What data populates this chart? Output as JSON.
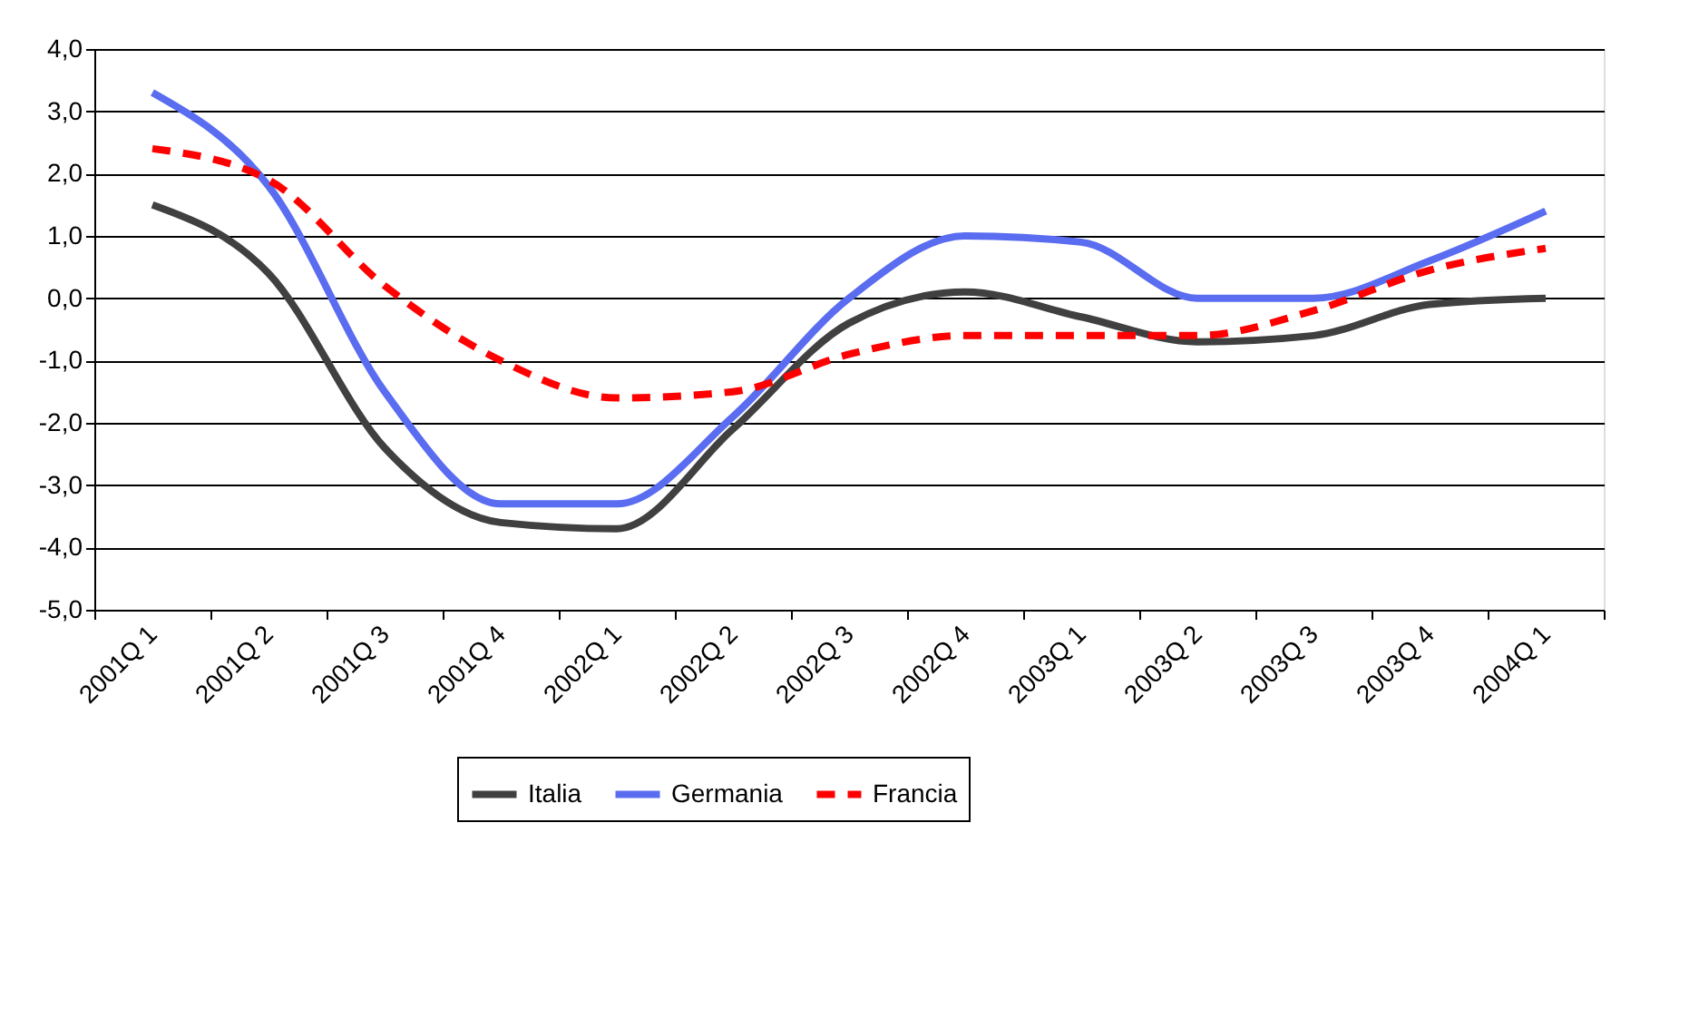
{
  "chart_data": {
    "type": "line",
    "categories": [
      "2001Q 1",
      "2001Q 2",
      "2001Q 3",
      "2001Q 4",
      "2002Q 1",
      "2002Q 2",
      "2002Q 3",
      "2002Q 4",
      "2003Q 1",
      "2003Q 2",
      "2003Q 3",
      "2003Q 4",
      "2004Q 1"
    ],
    "series": [
      {
        "name": "Italia",
        "color": "#404040",
        "line_style": "solid",
        "values": [
          1.5,
          0.4,
          -2.4,
          -3.6,
          -3.7,
          -2.1,
          -0.4,
          0.1,
          -0.3,
          -0.7,
          -0.6,
          -0.1,
          0.0
        ]
      },
      {
        "name": "Germania",
        "color": "#5a6cf0",
        "line_style": "solid",
        "values": [
          3.3,
          1.8,
          -1.5,
          -3.3,
          -3.3,
          -1.9,
          0.0,
          1.0,
          0.9,
          0.0,
          0.0,
          0.6,
          1.4
        ]
      },
      {
        "name": "Francia",
        "color": "#ff0000",
        "line_style": "dashed",
        "values": [
          2.4,
          1.9,
          0.2,
          -1.0,
          -1.6,
          -1.5,
          -0.9,
          -0.6,
          -0.6,
          -0.6,
          -0.2,
          0.45,
          0.8
        ]
      }
    ],
    "ylim": [
      -5,
      4
    ],
    "yticks": [
      {
        "value": -5,
        "label": "-5,0"
      },
      {
        "value": -4,
        "label": "-4,0"
      },
      {
        "value": -3,
        "label": "-3,0"
      },
      {
        "value": -2,
        "label": "-2,0"
      },
      {
        "value": -1,
        "label": "-1,0"
      },
      {
        "value": 0,
        "label": "0,0"
      },
      {
        "value": 1,
        "label": "1,0"
      },
      {
        "value": 2,
        "label": "2,0"
      },
      {
        "value": 3,
        "label": "3,0"
      },
      {
        "value": 4,
        "label": "4,0"
      }
    ],
    "grid": "y",
    "legend": "bottom",
    "marker": "none"
  }
}
